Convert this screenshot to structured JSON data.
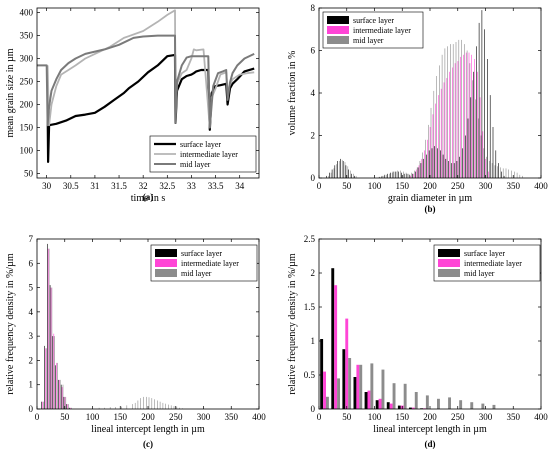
{
  "chart_data": [
    {
      "panel": "(a)",
      "type": "line",
      "xlabel": "time in s",
      "ylabel": "mean grain size in µm",
      "xlim": [
        29.8,
        34.4
      ],
      "ylim": [
        40,
        410
      ],
      "xticks": [
        30,
        30.5,
        31,
        31.5,
        32,
        32.5,
        33,
        33.5,
        34
      ],
      "xtick_labels": [
        "30",
        "30.5",
        "31",
        "31.5",
        "32",
        "32.5",
        "33",
        "33.5",
        "34"
      ],
      "yticks": [
        50,
        100,
        150,
        200,
        250,
        300,
        350,
        400
      ],
      "ytick_labels": [
        "50",
        "100",
        "150",
        "200",
        "250",
        "300",
        "350",
        "400"
      ],
      "legend_position": "bottom-right",
      "series": [
        {
          "name": "surface layer",
          "color": "#000000",
          "width": 2.2,
          "x": [
            30.02,
            30.03,
            30.05,
            30.2,
            30.4,
            30.6,
            30.8,
            31.0,
            31.2,
            31.4,
            31.6,
            31.7,
            31.9,
            32.1,
            32.3,
            32.5,
            32.66,
            32.67,
            32.7,
            32.8,
            32.9,
            33.0,
            33.05,
            33.1,
            33.2,
            33.35,
            33.38,
            33.42,
            33.5,
            33.6,
            33.72,
            33.75,
            33.8,
            33.85,
            33.95,
            34.1,
            34.3
          ],
          "y": [
            200,
            75,
            155,
            158,
            165,
            175,
            178,
            182,
            195,
            210,
            225,
            235,
            250,
            270,
            285,
            305,
            308,
            160,
            230,
            255,
            262,
            265,
            268,
            272,
            275,
            275,
            145,
            225,
            240,
            242,
            245,
            200,
            235,
            245,
            255,
            272,
            278
          ]
        },
        {
          "name": "intermediate layer",
          "color": "#b4b4b4",
          "width": 1.8,
          "x": [
            30.02,
            30.05,
            30.1,
            30.2,
            30.3,
            30.45,
            30.6,
            30.8,
            31.0,
            31.3,
            31.6,
            32.0,
            32.3,
            32.5,
            32.66,
            32.67,
            32.7,
            32.8,
            32.9,
            33.0,
            33.05,
            33.1,
            33.25,
            33.38,
            33.42,
            33.5,
            33.6,
            33.72,
            33.75,
            33.85,
            34.0,
            34.15,
            34.3
          ],
          "y": [
            285,
            155,
            200,
            240,
            265,
            275,
            285,
            300,
            310,
            325,
            345,
            360,
            380,
            395,
            405,
            175,
            245,
            268,
            275,
            300,
            320,
            318,
            320,
            150,
            215,
            235,
            265,
            270,
            230,
            255,
            265,
            268,
            270
          ]
        },
        {
          "name": "mid layer",
          "color": "#7a7a7a",
          "width": 2.0,
          "x": [
            29.8,
            29.95,
            30.0,
            30.02,
            30.05,
            30.1,
            30.2,
            30.3,
            30.45,
            30.6,
            30.8,
            31.0,
            31.2,
            31.5,
            31.8,
            32.0,
            32.3,
            32.66,
            32.67,
            32.7,
            32.8,
            32.9,
            33.0,
            33.1,
            33.2,
            33.35,
            33.38,
            33.45,
            33.55,
            33.65,
            33.72,
            33.75,
            33.8,
            33.85,
            33.95,
            34.1,
            34.3
          ],
          "y": [
            285,
            285,
            285,
            155,
            195,
            230,
            255,
            275,
            290,
            300,
            310,
            315,
            320,
            330,
            345,
            348,
            350,
            350,
            160,
            250,
            285,
            302,
            305,
            305,
            305,
            305,
            150,
            240,
            268,
            272,
            275,
            210,
            248,
            268,
            285,
            300,
            310
          ]
        }
      ],
      "caption": "(a)"
    },
    {
      "panel": "(b)",
      "type": "bar",
      "xlabel": "grain diameter in µm",
      "ylabel": "volume fraction in %",
      "xlim": [
        0,
        400
      ],
      "ylim": [
        0,
        8
      ],
      "xticks": [
        0,
        50,
        100,
        150,
        200,
        250,
        300,
        350,
        400
      ],
      "xtick_labels": [
        "0",
        "50",
        "100",
        "150",
        "200",
        "250",
        "300",
        "350",
        "400"
      ],
      "yticks": [
        0,
        2,
        4,
        6,
        8
      ],
      "ytick_labels": [
        "0",
        "2",
        "4",
        "6",
        "8"
      ],
      "legend_position": "top-left",
      "bin_width_um": 5,
      "series": [
        {
          "name": "surface layer",
          "color": "#000000",
          "x": [
            15,
            20,
            25,
            30,
            35,
            40,
            45,
            50,
            55,
            60,
            65,
            110,
            115,
            120,
            125,
            130,
            135,
            140,
            145,
            150,
            155,
            160,
            165,
            170,
            175,
            180,
            185,
            190,
            195,
            200,
            205,
            210,
            215,
            220,
            225,
            230,
            235,
            240,
            245,
            250,
            255,
            260,
            265,
            270,
            275,
            280,
            285,
            290,
            295,
            300,
            305,
            310,
            315,
            320,
            325,
            330,
            335
          ],
          "values": [
            0.1,
            0.25,
            0.4,
            0.6,
            0.8,
            0.9,
            0.8,
            0.6,
            0.4,
            0.2,
            0.1,
            0.05,
            0.1,
            0.15,
            0.2,
            0.25,
            0.3,
            0.3,
            0.3,
            0.25,
            0.2,
            0.2,
            0.15,
            0.2,
            0.3,
            0.5,
            0.7,
            0.9,
            1.1,
            1.3,
            1.4,
            1.5,
            1.4,
            1.3,
            1.1,
            0.9,
            0.8,
            0.7,
            0.7,
            0.8,
            1.0,
            1.4,
            2.0,
            2.8,
            3.8,
            5.0,
            6.2,
            7.3,
            7.9,
            7.0,
            5.6,
            3.9,
            2.4,
            1.3,
            0.7,
            0.3,
            0.1
          ]
        },
        {
          "name": "intermediate layer",
          "color": "#ff45d6",
          "x": [
            165,
            170,
            175,
            180,
            185,
            190,
            195,
            200,
            205,
            210,
            215,
            220,
            225,
            230,
            235,
            240,
            245,
            250,
            255,
            260,
            265,
            270,
            275,
            280,
            285,
            290,
            295,
            300,
            305
          ],
          "values": [
            0.1,
            0.2,
            0.4,
            0.6,
            0.9,
            1.3,
            1.8,
            2.4,
            3.0,
            3.5,
            3.9,
            4.2,
            4.5,
            4.7,
            5.0,
            5.2,
            5.4,
            5.5,
            5.7,
            5.8,
            5.9,
            5.9,
            5.8,
            5.6,
            5.0,
            3.8,
            2.2,
            0.9,
            0.3
          ]
        },
        {
          "name": "mid layer",
          "color": "#8c8c8c",
          "x": [
            15,
            20,
            25,
            30,
            35,
            40,
            45,
            50,
            55,
            60,
            65,
            110,
            115,
            120,
            125,
            130,
            135,
            140,
            145,
            150,
            155,
            160,
            165,
            170,
            175,
            180,
            185,
            190,
            195,
            200,
            205,
            210,
            215,
            220,
            225,
            230,
            235,
            240,
            245,
            250,
            255,
            260,
            265,
            270,
            275,
            280,
            285,
            290,
            295,
            300,
            305,
            310,
            315,
            320,
            325,
            330,
            335,
            340,
            345,
            350,
            355,
            360,
            365
          ],
          "values": [
            0.1,
            0.25,
            0.45,
            0.65,
            0.8,
            0.85,
            0.75,
            0.55,
            0.35,
            0.2,
            0.1,
            0.05,
            0.1,
            0.15,
            0.2,
            0.25,
            0.3,
            0.35,
            0.35,
            0.3,
            0.25,
            0.2,
            0.25,
            0.35,
            0.5,
            0.8,
            1.2,
            1.8,
            2.5,
            3.3,
            4.1,
            4.8,
            5.3,
            5.8,
            6.1,
            6.2,
            6.3,
            6.3,
            6.4,
            6.5,
            6.5,
            6.3,
            6.0,
            5.4,
            4.6,
            3.7,
            2.8,
            2.0,
            1.4,
            1.0,
            0.8,
            0.7,
            0.6,
            0.55,
            0.5,
            0.45,
            0.45,
            0.4,
            0.35,
            0.3,
            0.25,
            0.15,
            0.1
          ]
        }
      ],
      "caption": "(b)"
    },
    {
      "panel": "(c)",
      "type": "bar",
      "xlabel": "lineal intercept length in µm",
      "ylabel": "relative frequency density in %/µm",
      "xlim": [
        0,
        400
      ],
      "ylim": [
        0,
        7
      ],
      "xticks": [
        0,
        50,
        100,
        150,
        200,
        250,
        300,
        350,
        400
      ],
      "xtick_labels": [
        "0",
        "50",
        "100",
        "150",
        "200",
        "250",
        "300",
        "350",
        "400"
      ],
      "yticks": [
        0,
        1,
        2,
        3,
        4,
        5,
        6,
        7
      ],
      "ytick_labels": [
        "0",
        "1",
        "2",
        "3",
        "4",
        "5",
        "6",
        "7"
      ],
      "legend_position": "top-right",
      "bin_width_um": 5,
      "series": [
        {
          "name": "surface layer",
          "color": "#000000",
          "x": [
            10,
            15,
            20,
            25,
            30,
            35,
            40,
            45,
            50,
            55,
            60
          ],
          "values": [
            0.3,
            2.6,
            6.8,
            5.1,
            3.0,
            1.8,
            1.2,
            1.0,
            0.5,
            0.2,
            0.05
          ]
        },
        {
          "name": "intermediate layer",
          "color": "#ff45d6",
          "x": [
            10,
            15,
            20,
            25,
            30,
            35,
            40,
            45,
            50,
            55,
            60
          ],
          "values": [
            0.3,
            2.5,
            6.6,
            5.0,
            3.1,
            1.9,
            1.2,
            0.9,
            0.5,
            0.2,
            0.05
          ]
        },
        {
          "name": "mid layer",
          "color": "#8c8c8c",
          "x": [
            10,
            15,
            20,
            25,
            30,
            35,
            40,
            45,
            50,
            55,
            60,
            110,
            120,
            130,
            140,
            150,
            160,
            170,
            175,
            180,
            185,
            190,
            195,
            200,
            205,
            210,
            215,
            220,
            225,
            230,
            235,
            240,
            245,
            250,
            255,
            260
          ],
          "values": [
            0.3,
            2.5,
            6.6,
            5.0,
            3.0,
            1.9,
            1.2,
            1.0,
            0.5,
            0.2,
            0.05,
            0.05,
            0.05,
            0.08,
            0.08,
            0.1,
            0.15,
            0.2,
            0.25,
            0.35,
            0.45,
            0.5,
            0.5,
            0.48,
            0.45,
            0.4,
            0.35,
            0.3,
            0.25,
            0.22,
            0.18,
            0.15,
            0.12,
            0.1,
            0.05,
            0.03
          ]
        }
      ],
      "caption": "(c)"
    },
    {
      "panel": "(d)",
      "type": "bar",
      "xlabel": "lineal intercept length in µm",
      "ylabel": "relative frequency density in %/µm",
      "xlim": [
        0,
        400
      ],
      "ylim": [
        0,
        2.5
      ],
      "xticks": [
        0,
        50,
        100,
        150,
        200,
        250,
        300,
        350,
        400
      ],
      "xtick_labels": [
        "0",
        "50",
        "100",
        "150",
        "200",
        "250",
        "300",
        "350",
        "400"
      ],
      "yticks": [
        0,
        0.5,
        1,
        1.5,
        2,
        2.5
      ],
      "ytick_labels": [
        "0",
        "0.5",
        "1",
        "1.5",
        "2",
        "2.5"
      ],
      "legend_position": "top-right",
      "bin_width_um": 20,
      "categories": [
        10,
        30,
        50,
        70,
        90,
        110,
        130,
        150,
        170,
        190,
        210,
        230,
        250,
        270,
        290,
        310
      ],
      "series": [
        {
          "name": "surface layer",
          "color": "#000000",
          "values": [
            1.03,
            2.07,
            0.88,
            0.47,
            0.25,
            0.13,
            0.1,
            0.05,
            0.02,
            0.01,
            0,
            0,
            0,
            0,
            0,
            0
          ]
        },
        {
          "name": "intermediate layer",
          "color": "#ff45d6",
          "values": [
            0.55,
            1.82,
            1.33,
            0.65,
            0.27,
            0.15,
            0.08,
            0.05,
            0.02,
            0.01,
            0,
            0,
            0,
            0,
            0,
            0
          ]
        },
        {
          "name": "mid layer",
          "color": "#8c8c8c",
          "values": [
            0.18,
            0.45,
            0.75,
            0.65,
            0.67,
            0.58,
            0.38,
            0.37,
            0.25,
            0.2,
            0.15,
            0.17,
            0.13,
            0.1,
            0.08,
            0.06
          ]
        }
      ],
      "caption": "(d)"
    }
  ]
}
